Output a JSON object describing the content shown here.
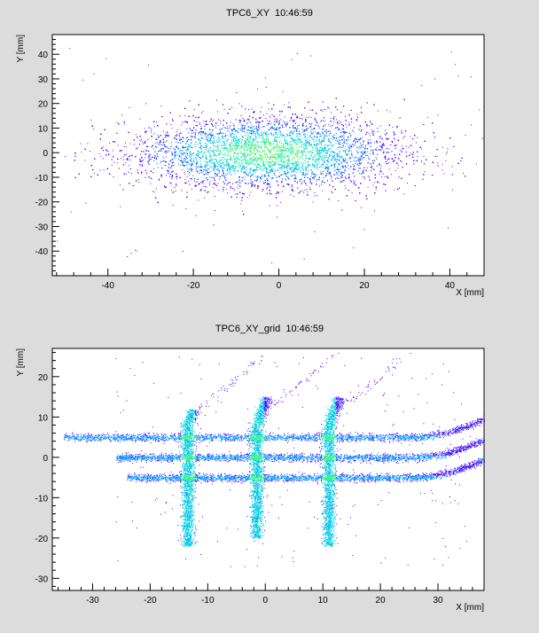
{
  "chart_data": [
    {
      "type": "heatmap",
      "title": "TPC6_XY  10:46:59",
      "xlabel": "X [mm]",
      "ylabel": "Y [mm]",
      "xlim": [
        -53,
        48
      ],
      "ylim": [
        -50,
        48
      ],
      "xticks": [
        -40,
        -20,
        0,
        20,
        40
      ],
      "yticks": [
        -40,
        -30,
        -20,
        -10,
        0,
        10,
        20,
        30,
        40
      ],
      "grid": false,
      "legend": "none",
      "distribution": {
        "shape": "gaussian-blob",
        "center": [
          -3,
          0
        ],
        "sigma_x": 16,
        "sigma_y": 7.5,
        "x_extent": [
          -48,
          48
        ],
        "y_extent": [
          -27,
          27
        ]
      },
      "colors": [
        "#4b00ff",
        "#1e3dff",
        "#00a4ff",
        "#00e8d0",
        "#3bf08a",
        "#9ef04a"
      ]
    },
    {
      "type": "heatmap",
      "title": "TPC6_XY_grid  10:46:59",
      "xlabel": "X [mm]",
      "ylabel": "Y [mm]",
      "xlim": [
        -37,
        38
      ],
      "ylim": [
        -33,
        27
      ],
      "xticks": [
        -30,
        -20,
        -10,
        0,
        10,
        20,
        30
      ],
      "yticks": [
        -30,
        -20,
        -10,
        0,
        10,
        20
      ],
      "grid": false,
      "legend": "none",
      "horizontal_bands": [
        {
          "y": 5,
          "x_range": [
            -35,
            38
          ]
        },
        {
          "y": 0,
          "x_range": [
            -26,
            38
          ]
        },
        {
          "y": -5,
          "x_range": [
            -24,
            38
          ]
        }
      ],
      "vertical_bands": [
        {
          "x": -13.5,
          "y_range": [
            -22,
            12
          ]
        },
        {
          "x": -1.5,
          "y_range": [
            -20,
            15
          ]
        },
        {
          "x": 11,
          "y_range": [
            -22,
            15
          ]
        }
      ],
      "colors": [
        "#4b00ff",
        "#1e3dff",
        "#00a4ff",
        "#00e8d0",
        "#3bf08a"
      ]
    }
  ]
}
